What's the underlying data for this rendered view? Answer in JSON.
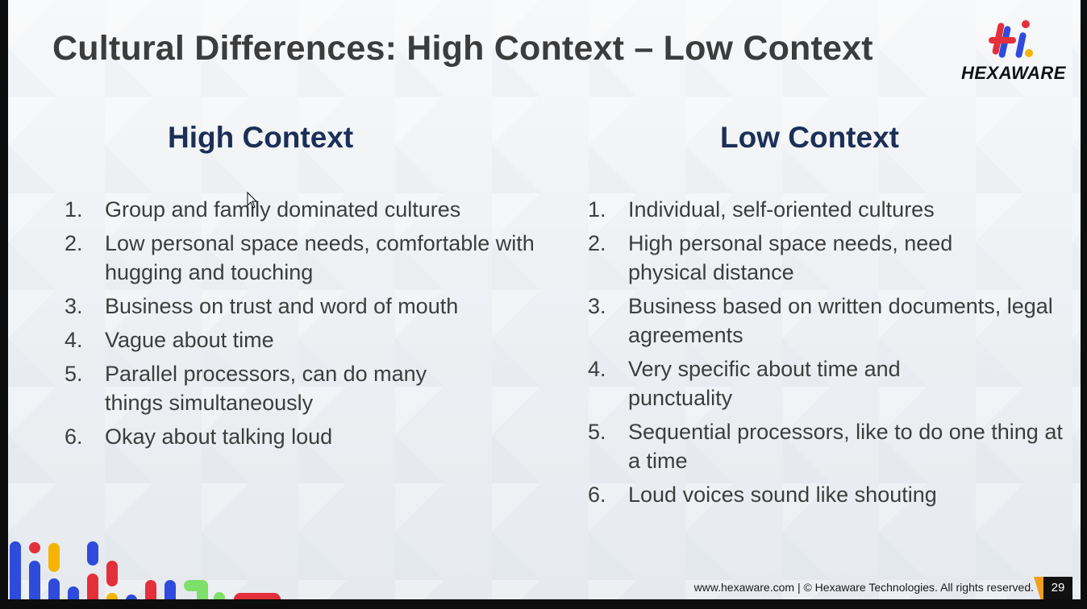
{
  "slide": {
    "title": "Cultural Differences: High Context – Low Context",
    "logo_text": "HEXAWARE",
    "logo_icon": "hexaware-hi-logo"
  },
  "high_context": {
    "heading": "High Context",
    "items": [
      {
        "num": "1.",
        "text": "Group and family dominated cultures"
      },
      {
        "num": "2.",
        "text": "Low personal space needs, comfortable with hugging and touching"
      },
      {
        "num": "3.",
        "text": "Business on trust and word of mouth"
      },
      {
        "num": "4.",
        "text": "Vague about time"
      },
      {
        "num": "5.",
        "text": "Parallel processors, can  do many things simultaneously"
      },
      {
        "num": "6.",
        "text": "Okay about talking loud"
      }
    ]
  },
  "low_context": {
    "heading": "Low Context",
    "items": [
      {
        "num": "1.",
        "text": "Individual, self-oriented cultures"
      },
      {
        "num": "2.",
        "text": "High personal space needs, need physical distance"
      },
      {
        "num": "3.",
        "text": "Business based on written documents, legal agreements"
      },
      {
        "num": "4.",
        "text": "Very specific about time and punctuality"
      },
      {
        "num": "5.",
        "text": "Sequential processors, like to do one thing at a time"
      },
      {
        "num": "6.",
        "text": "Loud voices sound like shouting"
      }
    ]
  },
  "footer": {
    "text": "www.hexaware.com  | © Hexaware Technologies. All rights reserved.",
    "page_number": "29"
  },
  "colors": {
    "heading": "#1c2f57",
    "title": "#3c3c3c",
    "body_text": "#3d3d3d",
    "logo_blue": "#2f4bdc",
    "logo_red": "#e3303b",
    "logo_yellow": "#f5b400",
    "accent_orange": "#f0a021"
  }
}
